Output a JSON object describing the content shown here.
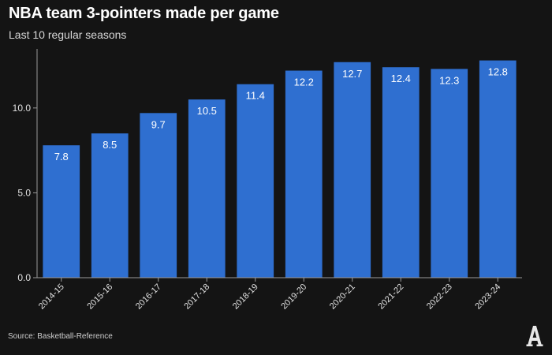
{
  "chart_data": {
    "type": "bar",
    "title": "NBA team 3-pointers made per game",
    "subtitle": "Last 10 regular seasons",
    "categories": [
      "2014-15",
      "2015-16",
      "2016-17",
      "2017-18",
      "2018-19",
      "2019-20",
      "2020-21",
      "2021-22",
      "2022-23",
      "2023-24"
    ],
    "values": [
      7.8,
      8.5,
      9.7,
      10.5,
      11.4,
      12.2,
      12.7,
      12.4,
      12.3,
      12.8
    ],
    "value_labels": [
      "7.8",
      "8.5",
      "9.7",
      "10.5",
      "11.4",
      "12.2",
      "12.7",
      "12.4",
      "12.3",
      "12.8"
    ],
    "ylim": [
      0,
      13.2
    ],
    "yticks": [
      0,
      5,
      10
    ],
    "ytick_labels": [
      "0.0",
      "5.0",
      "10.0"
    ],
    "grid": false,
    "xlabel": "",
    "ylabel": "",
    "bar_color": "#2f6fd0",
    "background_color": "#141414"
  },
  "source": "Source: Basketball-Reference",
  "logo_icon": "athletic-logo"
}
